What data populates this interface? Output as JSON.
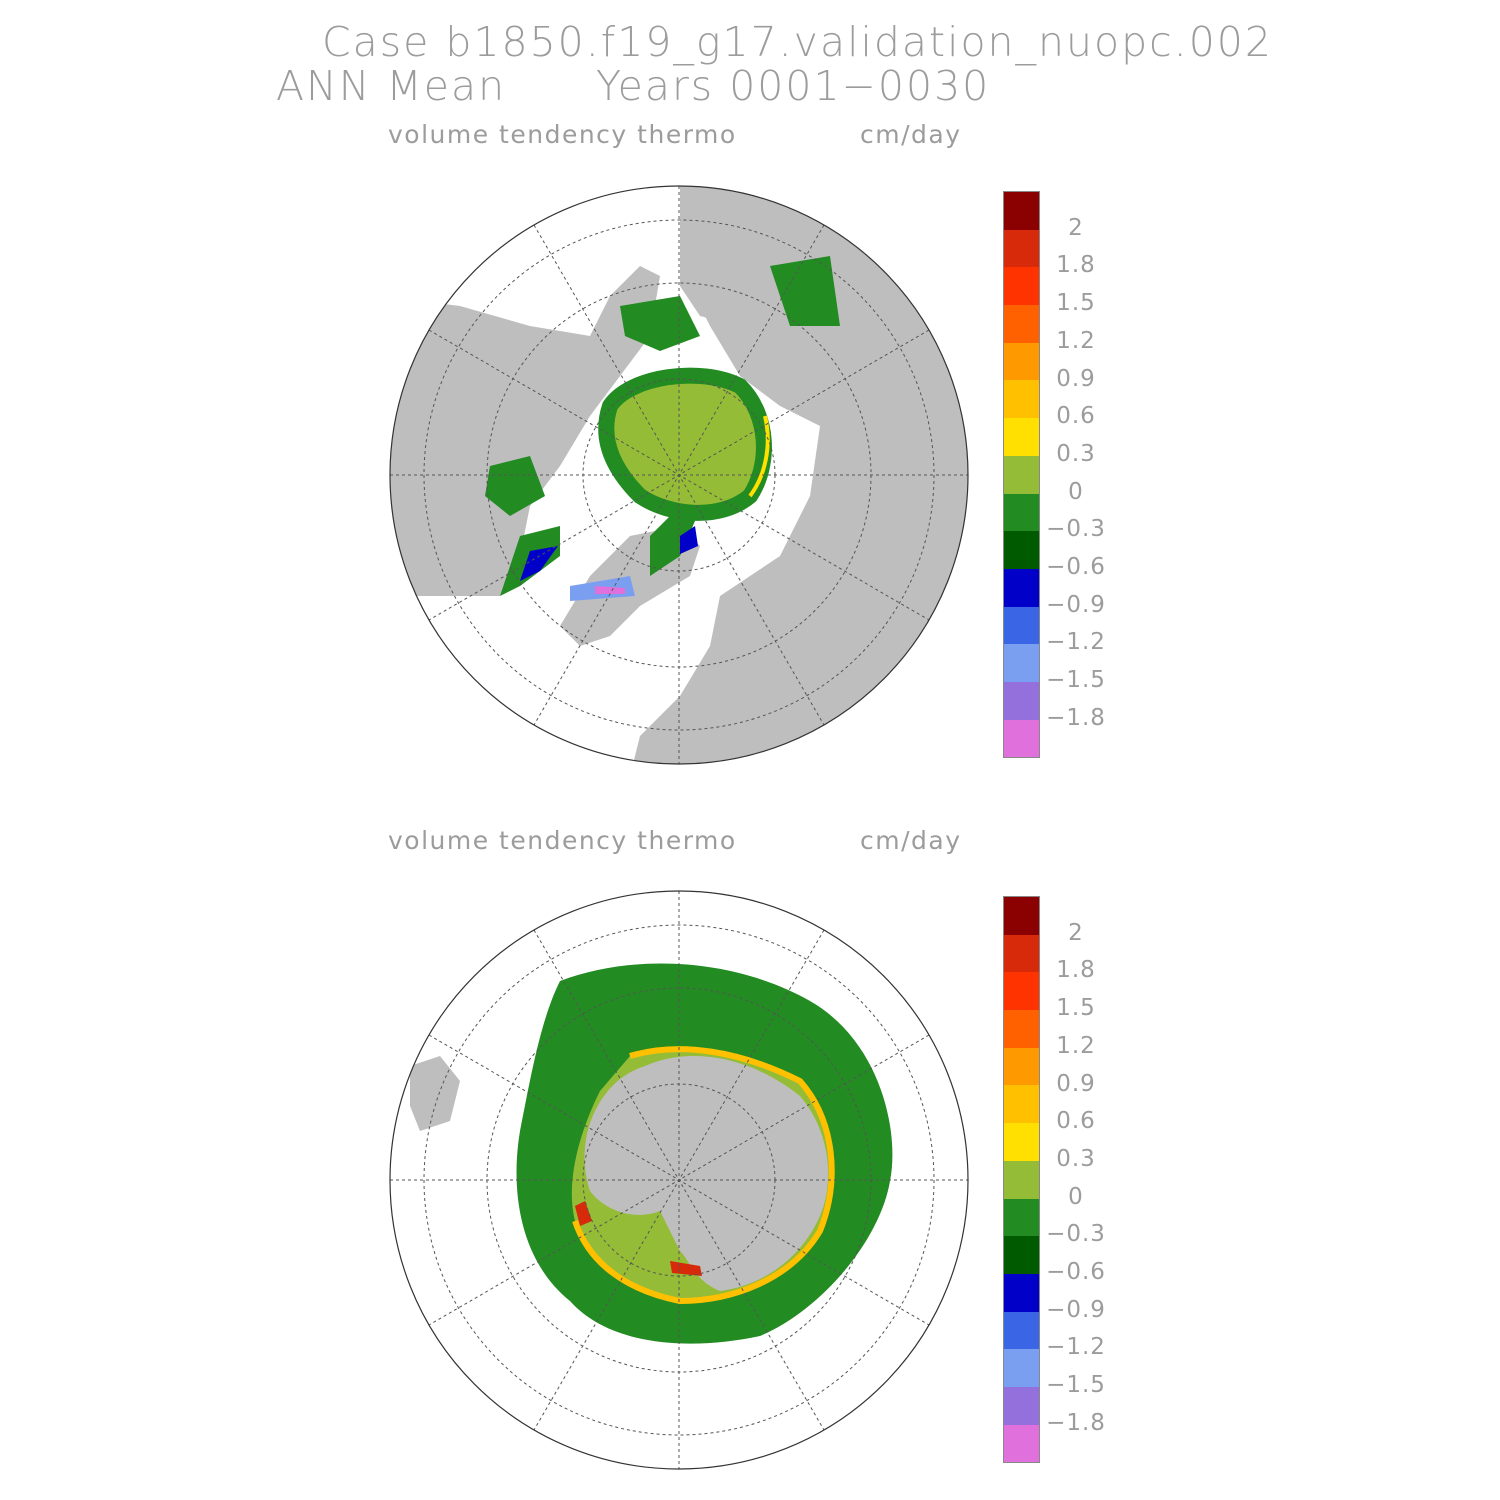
{
  "header": {
    "line1": "Case b1850.f19_g17.validation_nuopc.002",
    "line2_period": "ANN Mean",
    "line2_years": "Years 0001−0030"
  },
  "panels": [
    {
      "id": "arctic",
      "variable": "volume tendency thermo",
      "units": "cm/day",
      "hemisphere": "north"
    },
    {
      "id": "antarctic",
      "variable": "volume tendency thermo",
      "units": "cm/day",
      "hemisphere": "south"
    }
  ],
  "colorbar": {
    "colors": [
      "#8b0000",
      "#d62a0a",
      "#ff3300",
      "#ff6000",
      "#ff9900",
      "#ffc000",
      "#ffe000",
      "#95bc36",
      "#228b22",
      "#005a00",
      "#0000c8",
      "#3a66e6",
      "#7b9ff0",
      "#9370db",
      "#e070dc"
    ],
    "labels": [
      "2",
      "1.8",
      "1.5",
      "1.2",
      "0.9",
      "0.6",
      "0.3",
      "0",
      "−0.3",
      "−0.6",
      "−0.9",
      "−1.2",
      "−1.5",
      "−1.8"
    ]
  },
  "map_colors": {
    "land": "#bebebe",
    "ocean": "#ffffff",
    "grid": "#555555"
  }
}
